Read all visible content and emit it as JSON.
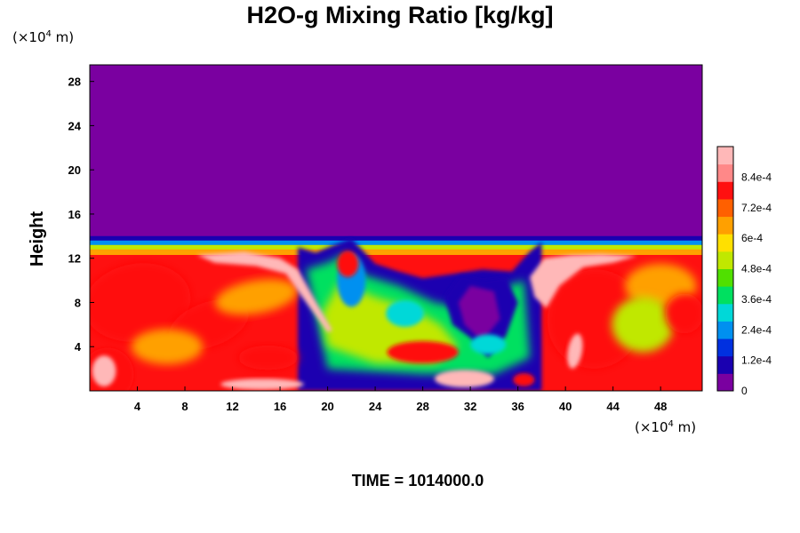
{
  "chart_data": {
    "type": "heatmap",
    "title": "H2O-g Mixing Ratio [kg/kg]",
    "ylabel": "Height",
    "y_unit": {
      "pre": "(×10",
      "exp": "4",
      "post": " m)"
    },
    "x_unit": {
      "pre": "(×10",
      "exp": "4",
      "post": " m)"
    },
    "time_label": "TIME = 1014000.0",
    "x_ticks": [
      "4",
      "8",
      "12",
      "16",
      "20",
      "24",
      "28",
      "32",
      "36",
      "40",
      "44",
      "48"
    ],
    "y_ticks": [
      "4",
      "8",
      "12",
      "16",
      "20",
      "24",
      "28"
    ],
    "x_tick_values": [
      4,
      8,
      12,
      16,
      20,
      24,
      28,
      32,
      36,
      40,
      44,
      48
    ],
    "y_tick_values": [
      4,
      8,
      12,
      16,
      20,
      24,
      28
    ],
    "xlim": [
      0,
      51.5
    ],
    "ylim": [
      0,
      29.5
    ],
    "colorbar": {
      "labels": [
        "0",
        "1.2e-4",
        "2.4e-4",
        "3.6e-4",
        "4.8e-4",
        "6e-4",
        "7.2e-4",
        "8.4e-4"
      ],
      "values": [
        0,
        0.00012,
        0.00024,
        0.00036,
        0.00048,
        0.0006,
        0.00072,
        0.00084
      ],
      "range": [
        0,
        0.00096
      ],
      "colors": [
        "#7a00a0",
        "#1a00b0",
        "#0030e0",
        "#0090f0",
        "#00d8d8",
        "#00e060",
        "#50e000",
        "#c0e800",
        "#ffe000",
        "#ffa000",
        "#ff6000",
        "#ff1010",
        "#ff8888",
        "#ffb8b8"
      ]
    },
    "background_value": 0,
    "moist_layer_top": 14,
    "region_values": [
      {
        "label": "dry upper layer",
        "x": [
          0,
          51.5
        ],
        "y": [
          14,
          29.5
        ],
        "value": 0
      },
      {
        "label": "moist layer left",
        "x": [
          0,
          18
        ],
        "y": [
          0,
          13
        ],
        "value": 0.00076
      },
      {
        "label": "moist layer right",
        "x": [
          37,
          51.5
        ],
        "y": [
          0,
          13
        ],
        "value": 0.00076
      },
      {
        "label": "central mixed region",
        "x": [
          18,
          37
        ],
        "y": [
          0,
          13
        ],
        "value": 0.00032
      },
      {
        "label": "dry intrusion",
        "x": [
          30,
          35
        ],
        "y": [
          4,
          10
        ],
        "value": 0.00012
      }
    ]
  }
}
